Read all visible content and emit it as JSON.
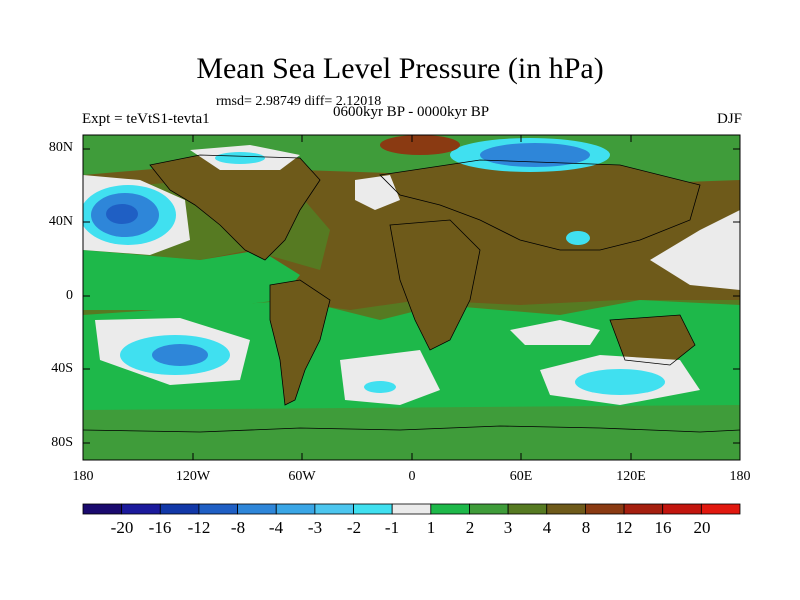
{
  "title": "Mean Sea Level Pressure (in hPa)",
  "stats_line": "rmsd= 2.98749 diff= 2.12018",
  "period": "0600kyr BP - 0000kyr BP",
  "experiment": "Expt = teVtS1-tevta1",
  "season": "DJF",
  "y_ticks": [
    "80N",
    "40N",
    "0",
    "40S",
    "80S"
  ],
  "x_ticks": [
    "180",
    "120W",
    "60W",
    "0",
    "60E",
    "120E",
    "180"
  ],
  "colorbar": {
    "labels": [
      "-20",
      "-16",
      "-12",
      "-8",
      "-4",
      "-3",
      "-2",
      "-1",
      "1",
      "2",
      "3",
      "4",
      "8",
      "12",
      "16",
      "20"
    ],
    "colors": [
      "#1a0a6e",
      "#1b1a9c",
      "#1238a8",
      "#1f5fc4",
      "#2e86d9",
      "#3aa6e6",
      "#4cc6ef",
      "#40e0f0",
      "#ebebeb",
      "#1eb84a",
      "#3f9c3a",
      "#567a22",
      "#6e5a1a",
      "#8a3a12",
      "#a51f0f",
      "#c2150e",
      "#e1180f"
    ]
  },
  "colors": {
    "land_brown": "#6e5a1a",
    "olive": "#567a22",
    "green_dark": "#3f9c3a",
    "green": "#1eb84a",
    "white_band": "#ebebeb",
    "cyan": "#40e0f0",
    "light_blue": "#4cc6ef",
    "blue": "#2e86d9",
    "deep_blue": "#1f5fc4",
    "red_brown": "#8a3a12"
  }
}
